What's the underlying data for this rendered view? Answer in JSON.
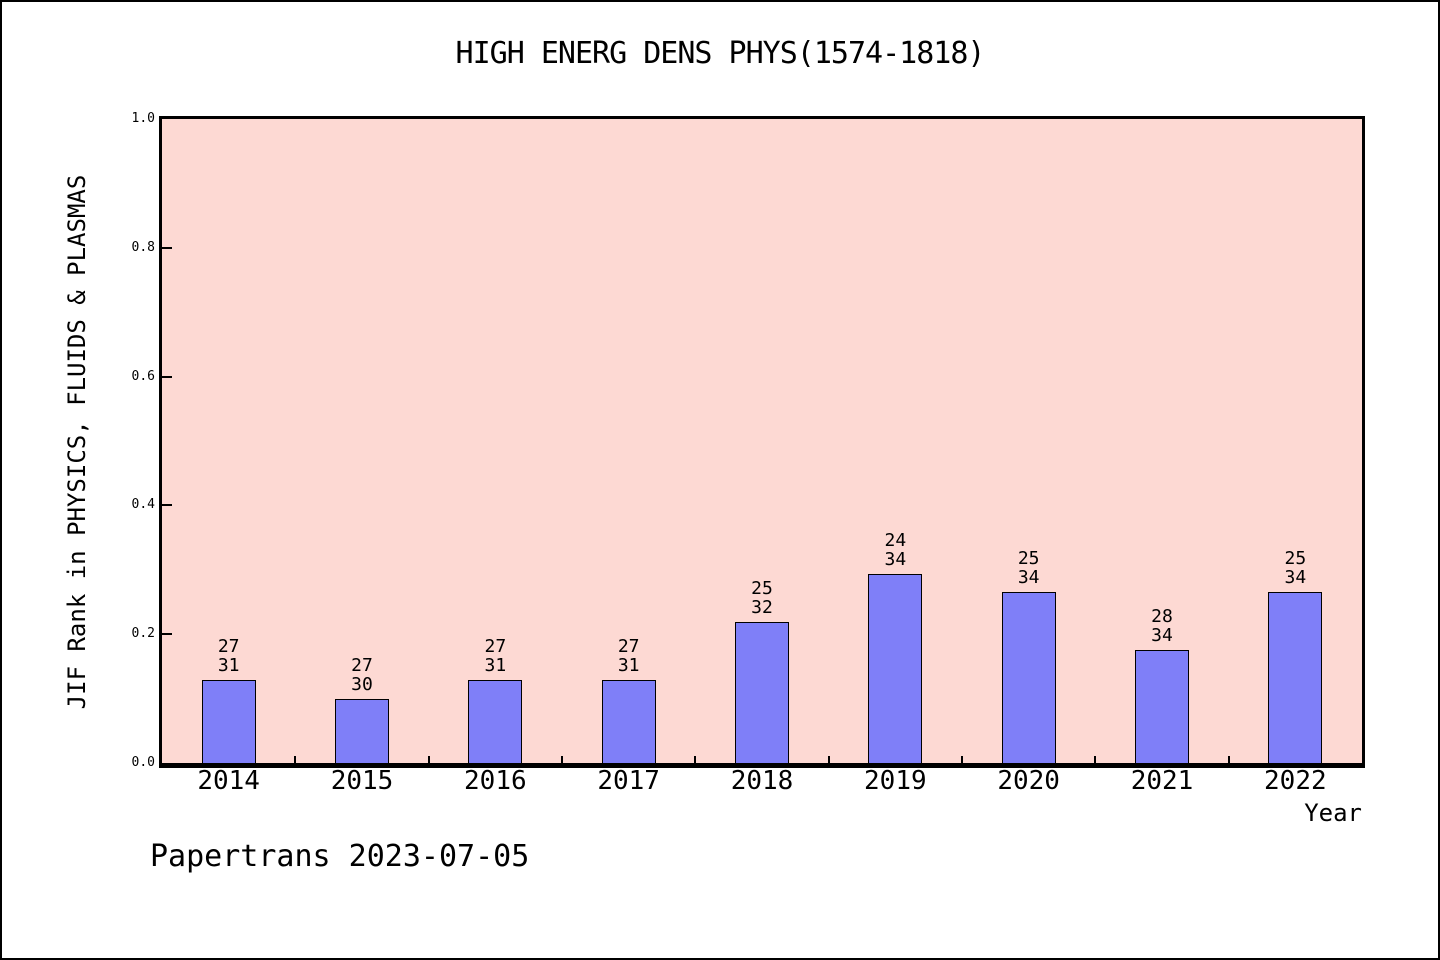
{
  "page": {
    "watermark": "Papertrans 2023-07-05"
  },
  "colors": {
    "page_background": "#ffffff",
    "plot_background": "#fdd9d3",
    "bar_fill": "#7f7ff8",
    "bar_border": "#000000",
    "frame": "#000000",
    "text": "#000000"
  },
  "chart_data": {
    "type": "bar",
    "title": "HIGH ENERG DENS PHYS(1574-1818)",
    "xlabel": "Year",
    "ylabel": "JIF Rank in PHYSICS, FLUIDS & PLASMAS",
    "categories": [
      "2014",
      "2015",
      "2016",
      "2017",
      "2018",
      "2019",
      "2020",
      "2021",
      "2022"
    ],
    "values": [
      0.129,
      0.1,
      0.129,
      0.129,
      0.219,
      0.294,
      0.265,
      0.176,
      0.265
    ],
    "bar_labels": [
      [
        "27",
        "31"
      ],
      [
        "27",
        "30"
      ],
      [
        "27",
        "31"
      ],
      [
        "27",
        "31"
      ],
      [
        "25",
        "32"
      ],
      [
        "24",
        "34"
      ],
      [
        "25",
        "34"
      ],
      [
        "28",
        "34"
      ],
      [
        "25",
        "34"
      ]
    ],
    "ylim": [
      0,
      1
    ],
    "yticks": [
      {
        "label": "0.0",
        "value": 0.0
      },
      {
        "label": "0.2",
        "value": 0.2
      },
      {
        "label": "0.4",
        "value": 0.4
      },
      {
        "label": "0.6",
        "value": 0.6
      },
      {
        "label": "0.8",
        "value": 0.8
      },
      {
        "label": "1.0",
        "value": 1.0
      }
    ],
    "grid": false,
    "legend": null
  }
}
